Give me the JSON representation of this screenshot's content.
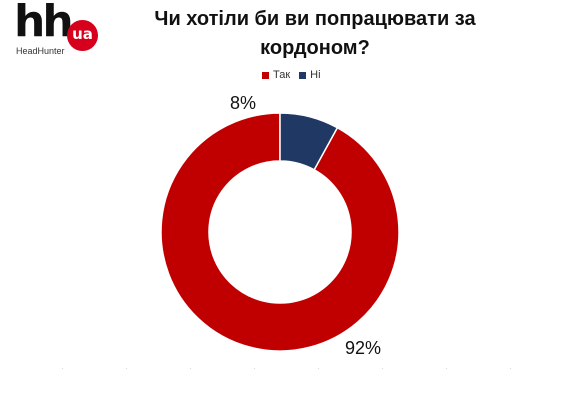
{
  "logo": {
    "mark": "hh",
    "badge": "ua",
    "subtitle": "HeadHunter"
  },
  "chart_data": {
    "type": "pie",
    "style": "donut",
    "title": "Чи хотіли би ви попрацювати за кордоном?",
    "legend_position": "top",
    "categories": [
      "Так",
      "Ні"
    ],
    "values": [
      92,
      8
    ],
    "colors": [
      "#c00000",
      "#1f3864"
    ],
    "data_labels": [
      "92%",
      "8%"
    ]
  }
}
